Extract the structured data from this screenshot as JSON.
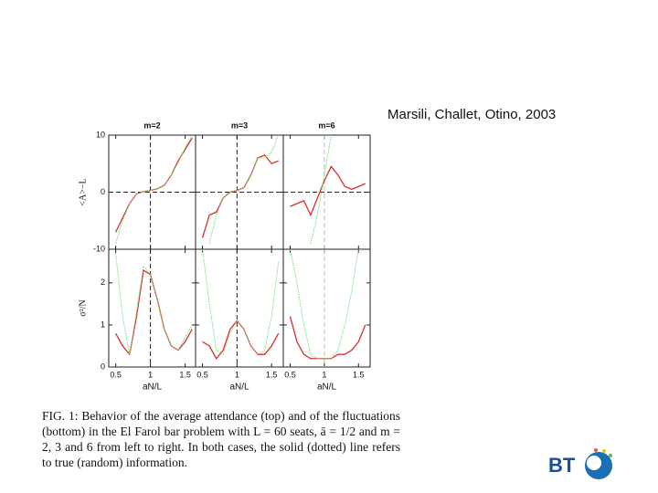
{
  "citation": "Marsili, Challet, Otino, 2003",
  "caption": "FIG. 1: Behavior of the average attendance (top) and of the fluctuations (bottom) in the El Farol bar problem with L = 60 seats, ā = 1/2 and m = 2, 3 and 6 from left to right. In both cases, the solid (dotted) line refers to true (random) information.",
  "logo": "BT",
  "chart_data": [
    {
      "type": "line",
      "title": "m=2",
      "y_label": "<A>−L",
      "x": [
        0.4,
        0.5,
        0.6,
        0.7,
        0.8,
        0.9,
        1.0,
        1.1,
        1.2,
        1.3,
        1.4,
        1.5,
        1.6
      ],
      "xlim": [
        0.4,
        1.65
      ],
      "xticks": [
        0.5,
        1,
        1.5
      ],
      "ylim": [
        -10,
        10
      ],
      "yticks": [
        -10,
        0,
        10
      ],
      "vline": 1,
      "hline": 0,
      "vline_color": "#222",
      "series": [
        {
          "color": "#d83030",
          "style": "solid",
          "values": [
            null,
            -7,
            -4.5,
            -2,
            -0.3,
            0.1,
            0.3,
            0.6,
            1.2,
            3,
            5.5,
            7.5,
            9.5
          ]
        },
        {
          "color": "#7fdc7f",
          "style": "dotted",
          "values": [
            null,
            -9,
            -5,
            -2,
            -0.3,
            0.1,
            0.3,
            0.6,
            1.2,
            3,
            5.2,
            7.8,
            10
          ]
        }
      ]
    },
    {
      "type": "line",
      "title": "m=3",
      "x": [
        0.4,
        0.5,
        0.6,
        0.7,
        0.8,
        0.9,
        1.0,
        1.1,
        1.2,
        1.3,
        1.4,
        1.5,
        1.6
      ],
      "xlim": [
        0.4,
        1.67
      ],
      "xticks": [
        0.5,
        1,
        1.5
      ],
      "ylim": [
        -10,
        10
      ],
      "yticks": [
        -10,
        0,
        10
      ],
      "vline": 1,
      "hline": 0,
      "vline_color": "#222",
      "series": [
        {
          "color": "#d83030",
          "style": "solid",
          "values": [
            null,
            -8,
            -4,
            -3.5,
            -1,
            0,
            0.3,
            0.8,
            3,
            6,
            6.5,
            5,
            5.5
          ]
        },
        {
          "color": "#7fdc7f",
          "style": "dotted",
          "values": [
            null,
            null,
            -9,
            -4,
            -1,
            0,
            0.3,
            0.8,
            3,
            6,
            6,
            7,
            10
          ]
        }
      ]
    },
    {
      "type": "line",
      "title": "m=6",
      "x": [
        0.4,
        0.5,
        0.6,
        0.7,
        0.8,
        0.9,
        1.0,
        1.1,
        1.2,
        1.3,
        1.4,
        1.5,
        1.6
      ],
      "xlim": [
        0.4,
        1.67
      ],
      "xticks": [
        0.5,
        1,
        1.5
      ],
      "ylim": [
        -10,
        10
      ],
      "yticks": [
        -10,
        0,
        10
      ],
      "vline": 1,
      "hline": 0,
      "vline_color": "#bbb",
      "series": [
        {
          "color": "#d83030",
          "style": "solid",
          "values": [
            null,
            -2.5,
            -2,
            -1.5,
            -4,
            -1,
            2,
            4.5,
            3,
            1,
            0.5,
            1,
            1.5
          ]
        },
        {
          "color": "#7fdc7f",
          "style": "dotted",
          "values": [
            null,
            null,
            null,
            null,
            -9,
            -4,
            3,
            10,
            null,
            null,
            null,
            null,
            null
          ]
        }
      ]
    },
    {
      "type": "line",
      "y_label": "σ²/N",
      "x_label": "aN/L",
      "x": [
        0.4,
        0.5,
        0.6,
        0.7,
        0.8,
        0.9,
        1.0,
        1.1,
        1.2,
        1.3,
        1.4,
        1.5,
        1.6
      ],
      "xlim": [
        0.4,
        1.65
      ],
      "xticks": [
        0.5,
        1,
        1.5
      ],
      "ylim": [
        0,
        2.8
      ],
      "yticks": [
        0,
        1,
        2
      ],
      "vline": 1,
      "vline_color": "#222",
      "series": [
        {
          "color": "#d83030",
          "style": "solid",
          "values": [
            null,
            0.8,
            0.5,
            0.3,
            1.2,
            2.3,
            2.2,
            1.6,
            0.9,
            0.5,
            0.4,
            0.6,
            0.9
          ]
        },
        {
          "color": "#7fdc7f",
          "style": "dotted",
          "values": [
            null,
            2.7,
            1.2,
            0.3,
            1.3,
            2.4,
            2.2,
            1.6,
            0.9,
            0.5,
            0.4,
            0.7,
            1.0
          ]
        }
      ]
    },
    {
      "type": "line",
      "x_label": "aN/L",
      "x": [
        0.4,
        0.5,
        0.6,
        0.7,
        0.8,
        0.9,
        1.0,
        1.1,
        1.2,
        1.3,
        1.4,
        1.5,
        1.6
      ],
      "xlim": [
        0.4,
        1.67
      ],
      "xticks": [
        0.5,
        1,
        1.5
      ],
      "ylim": [
        0,
        2.8
      ],
      "yticks": [
        0,
        1,
        2
      ],
      "vline": 1,
      "vline_color": "#222",
      "series": [
        {
          "color": "#d83030",
          "style": "solid",
          "values": [
            null,
            0.6,
            0.5,
            0.2,
            0.4,
            0.9,
            1.1,
            0.9,
            0.5,
            0.3,
            0.3,
            0.5,
            0.8
          ]
        },
        {
          "color": "#7fdc7f",
          "style": "dotted",
          "values": [
            null,
            2.8,
            1.5,
            0.4,
            0.3,
            0.8,
            1.1,
            0.9,
            0.5,
            0.3,
            0.4,
            1.2,
            2.5
          ]
        }
      ]
    },
    {
      "type": "line",
      "x_label": "aN/L",
      "x": [
        0.4,
        0.5,
        0.6,
        0.7,
        0.8,
        0.9,
        1.0,
        1.1,
        1.2,
        1.3,
        1.4,
        1.5,
        1.6
      ],
      "xlim": [
        0.4,
        1.67
      ],
      "xticks": [
        0.5,
        1,
        1.5
      ],
      "ylim": [
        0,
        2.8
      ],
      "yticks": [
        0,
        1,
        2
      ],
      "vline": 1,
      "vline_color": "#bbb",
      "series": [
        {
          "color": "#d83030",
          "style": "solid",
          "values": [
            null,
            1.2,
            0.6,
            0.3,
            0.2,
            0.2,
            0.2,
            0.2,
            0.3,
            0.3,
            0.4,
            0.6,
            1.0
          ]
        },
        {
          "color": "#7fdc7f",
          "style": "dotted",
          "values": [
            null,
            2.8,
            2,
            1,
            0.3,
            0.2,
            0.2,
            0.2,
            0.4,
            1,
            1.8,
            2.8,
            null
          ]
        }
      ]
    }
  ]
}
